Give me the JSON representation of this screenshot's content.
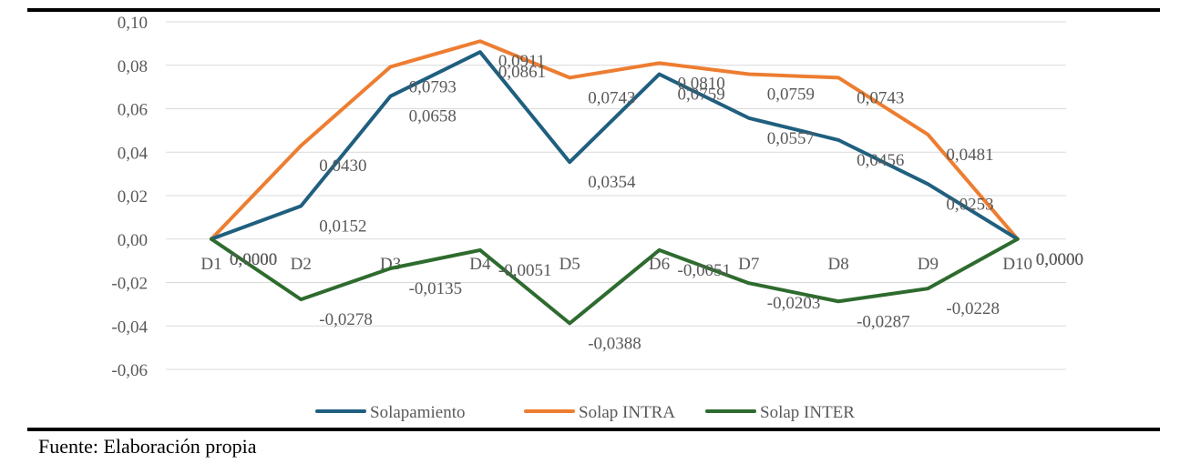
{
  "chart_data": {
    "type": "line",
    "categories": [
      "D1",
      "D2",
      "D3",
      "D4",
      "D5",
      "D6",
      "D7",
      "D8",
      "D9",
      "D10"
    ],
    "y_ticks": [
      "0,10",
      "0,08",
      "0,06",
      "0,04",
      "0,02",
      "0,00",
      "-0,02",
      "-0,04",
      "-0,06"
    ],
    "ylim": [
      -0.06,
      0.1
    ],
    "grid": true,
    "legend_position": "bottom",
    "series": [
      {
        "name": "Solapamiento",
        "color": "#1f5f7f",
        "values": [
          0,
          0.0152,
          0.0658,
          0.0861,
          0.0354,
          0.0759,
          0.0557,
          0.0456,
          0.0253,
          0
        ],
        "labels": [
          "0,0000",
          "0,0152",
          "0,0658",
          "0,0861",
          "0,0354",
          "0,0759",
          "0,0557",
          "0,0456",
          "0,0253",
          "0,0000"
        ]
      },
      {
        "name": "Solap INTRA",
        "color": "#ed7d31",
        "values": [
          0,
          0.043,
          0.0793,
          0.0911,
          0.0743,
          0.081,
          0.0759,
          0.0743,
          0.0481,
          0
        ],
        "labels": [
          "0,0000",
          "0,0430",
          "0,0793",
          "0,0911",
          "0,0743",
          "0,0810",
          "0,0759",
          "0,0743",
          "0,0481",
          "0,0000"
        ]
      },
      {
        "name": "Solap INTER",
        "color": "#2e6b2e",
        "values": [
          0,
          -0.0278,
          -0.0135,
          -0.0051,
          -0.0388,
          -0.0051,
          -0.0203,
          -0.0287,
          -0.0228,
          0
        ],
        "labels": [
          "0,0000",
          "-0,0278",
          "-0,0135",
          "-0,0051",
          "-0,0388",
          "-0,0051",
          "-0,0203",
          "-0,0287",
          "-0,0228",
          "0,0000"
        ]
      }
    ]
  },
  "source_note": "Fuente: Elaboración propia"
}
